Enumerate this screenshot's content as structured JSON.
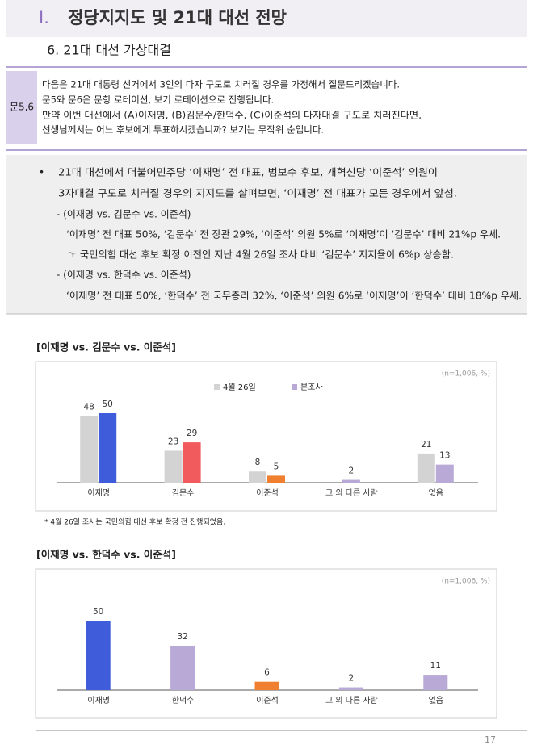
{
  "header": {
    "mark": "Ⅰ.",
    "title": "정당지지도 및 21대 대선 전망",
    "subtitle": "6. 21대 대선 가상대결"
  },
  "question": {
    "label": "문5,6",
    "lines": [
      "다음은 21대 대통령 선거에서 3인의 다자 구도로 치러질 경우를 가정해서 질문드리겠습니다.",
      "문5와 문6은 문항 로테이션, 보기 로테이션으로 진행됩니다.",
      "만약 이번 대선에서 (A)이재명, (B)김문수/한덕수, (C)이준석의 다자대결 구도로 치러진다면,",
      "선생님께서는 어느 후보에게 투표하시겠습니까? 보기는 무작위 순입니다."
    ]
  },
  "summary": {
    "bullet": "•",
    "lines": [
      "21대 대선에서 더불어민주당 ‘이재명’ 전 대표, 범보수 후보, 개혁신당 ‘이준석’ 의원이",
      "3자대결 구도로 치러질 경우의 지지도를 살펴보면, ‘이재명’ 전 대표가 모든 경우에서 앞섬.",
      "- (이재명 vs. 김문수 vs. 이준석)",
      "‘이재명’ 전 대표 50%, ‘김문수’ 전 장관 29%, ‘이준석’ 의원 5%로 ‘이재명’이 ‘김문수’ 대비 21%p 우세.",
      "☞ 국민의힘 대선 후보 확정 이전인 지난 4월 26일 조사 대비 ‘김문수’ 지지율이 6%p 상승함.",
      "- (이재명 vs. 한덕수 vs. 이준석)",
      "‘이재명’ 전 대표 50%, ‘한덕수’ 전 국무총리 32%, ‘이준석’ 의원 6%로 ‘이재명’이 ‘한덕수’ 대비 18%p 우세."
    ]
  },
  "chart_data": [
    {
      "type": "bar",
      "title": "[이재명 vs. 김문수 vs. 이준석]",
      "note": "(n=1,006, %)",
      "categories": [
        "이재명",
        "김문수",
        "이준석",
        "그 외 다른 사람",
        "없음"
      ],
      "series": [
        {
          "name": "4월 26일",
          "color": "#d3d3d3",
          "values": [
            48,
            23,
            8,
            null,
            21
          ]
        },
        {
          "name": "본조사",
          "color": "#b8a9d6",
          "colors": [
            "#3f5ddb",
            "#f15b5e",
            "#f0802f",
            "#b8a9d6",
            "#b8a9d6"
          ],
          "values": [
            50,
            29,
            5,
            2,
            13
          ]
        }
      ],
      "footnote": "* 4월 26일 조사는 국민의힘 대선 후보 확정 전 진행되었음."
    },
    {
      "type": "bar",
      "title": "[이재명 vs. 한덕수 vs. 이준석]",
      "note": "(n=1,006, %)",
      "categories": [
        "이재명",
        "한덕수",
        "이준석",
        "그 외 다른 사람",
        "없음"
      ],
      "values": [
        50,
        32,
        6,
        2,
        11
      ],
      "colors": [
        "#3f5ddb",
        "#b8a9d6",
        "#f0802f",
        "#b8a9d6",
        "#b8a9d6"
      ]
    }
  ],
  "page_number": "17"
}
